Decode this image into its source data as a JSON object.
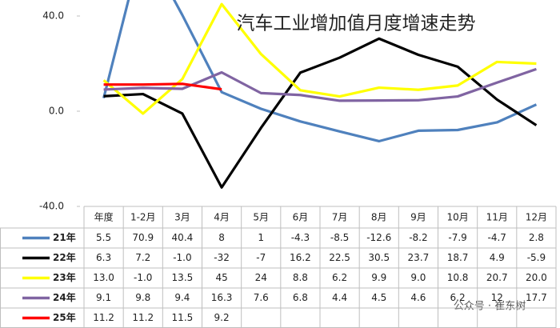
{
  "chart_data": {
    "type": "line",
    "title": "汽车工业增加值月度增速走势",
    "watermark": "公众号 · 崔东树",
    "categories": [
      "年度",
      "1-2月",
      "3月",
      "4月",
      "5月",
      "6月",
      "7月",
      "8月",
      "9月",
      "10月",
      "11月",
      "12月"
    ],
    "ylim": [
      -40,
      40
    ],
    "yticks": [
      {
        "value": 40,
        "label": "40.0"
      },
      {
        "value": 0,
        "label": "0.0"
      },
      {
        "value": -40,
        "label": "-40.0"
      }
    ],
    "grid": false,
    "series": [
      {
        "name": "21年",
        "color": "#4f81bd",
        "values": [
          5.5,
          70.9,
          40.4,
          8,
          1,
          -4.3,
          -8.5,
          -12.6,
          -8.2,
          -7.9,
          -4.7,
          2.8
        ],
        "value_labels": [
          "5.5",
          "70.9",
          "40.4",
          "8",
          "1",
          "-4.3",
          "-8.5",
          "-12.6",
          "-8.2",
          "-7.9",
          "-4.7",
          "2.8"
        ]
      },
      {
        "name": "22年",
        "color": "#000000",
        "values": [
          6.3,
          7.2,
          -1.0,
          -32,
          -7,
          16.2,
          22.5,
          30.5,
          23.7,
          18.7,
          4.9,
          -5.9
        ],
        "value_labels": [
          "6.3",
          "7.2",
          "-1.0",
          "-32",
          "-7",
          "16.2",
          "22.5",
          "30.5",
          "23.7",
          "18.7",
          "4.9",
          "-5.9"
        ]
      },
      {
        "name": "23年",
        "color": "#ffff00",
        "values": [
          13.0,
          -1.0,
          13.5,
          45,
          24,
          8.8,
          6.2,
          9.9,
          9.0,
          10.8,
          20.7,
          20.0
        ],
        "value_labels": [
          "13.0",
          "-1.0",
          "13.5",
          "45",
          "24",
          "8.8",
          "6.2",
          "9.9",
          "9.0",
          "10.8",
          "20.7",
          "20.0"
        ]
      },
      {
        "name": "24年",
        "color": "#8064a2",
        "values": [
          9.1,
          9.8,
          9.4,
          16.3,
          7.6,
          6.8,
          4.4,
          4.5,
          4.6,
          6.2,
          12,
          17.7
        ],
        "value_labels": [
          "9.1",
          "9.8",
          "9.4",
          "16.3",
          "7.6",
          "6.8",
          "4.4",
          "4.5",
          "4.6",
          "6.2",
          "12",
          "17.7"
        ]
      },
      {
        "name": "25年",
        "color": "#ff0000",
        "values": [
          11.2,
          11.2,
          11.5,
          9.2,
          null,
          null,
          null,
          null,
          null,
          null,
          null,
          null
        ],
        "value_labels": [
          "11.2",
          "11.2",
          "11.5",
          "9.2",
          null,
          null,
          null,
          null,
          null,
          null,
          null,
          null
        ]
      }
    ]
  }
}
